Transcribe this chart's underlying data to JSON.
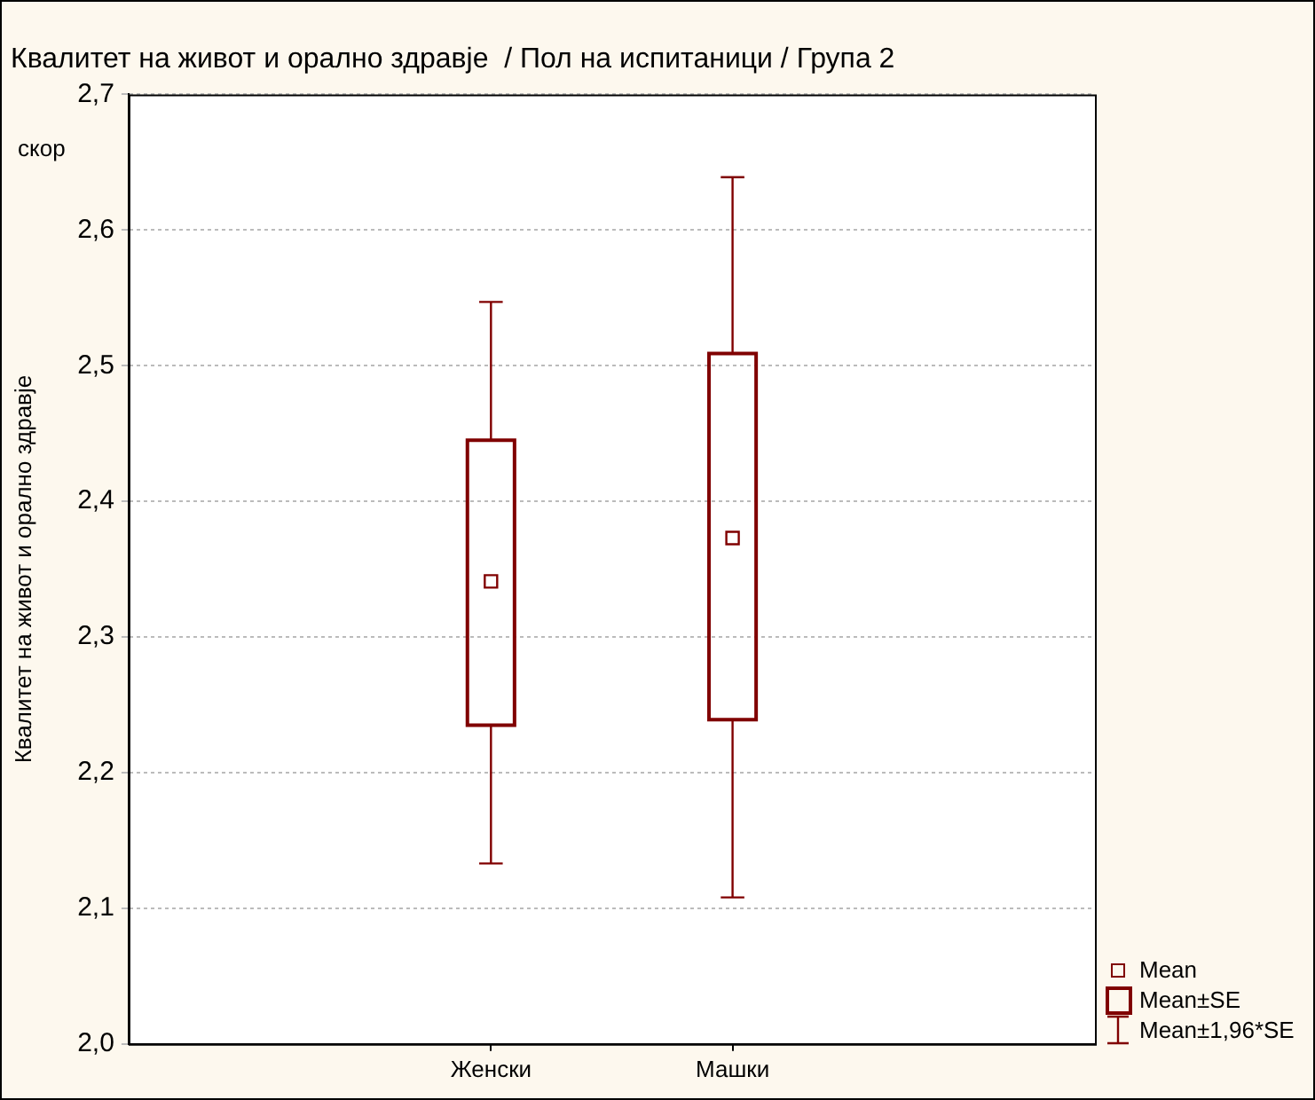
{
  "chart_data": {
    "type": "box",
    "title": "Квалитет на живот и орално здравје  / Пол на испитаници / Група 2",
    "ylabel": "Квалитет на живот и орално здравје",
    "categories": [
      "Женски",
      "Машки"
    ],
    "boxes": [
      {
        "low": 2.133,
        "q1": 2.235,
        "mean": 2.341,
        "q3": 2.445,
        "high": 2.547
      },
      {
        "low": 2.108,
        "q1": 2.239,
        "mean": 2.373,
        "q3": 2.509,
        "high": 2.639
      }
    ],
    "color": "#800000",
    "marker": "square",
    "ylim": [
      2.0,
      2.7
    ],
    "yticks": [
      {
        "value": 2.0,
        "label": "2,0"
      },
      {
        "value": 2.1,
        "label": "2,1"
      },
      {
        "value": 2.2,
        "label": "2,2"
      },
      {
        "value": 2.3,
        "label": "2,3"
      },
      {
        "value": 2.4,
        "label": "2,4"
      },
      {
        "value": 2.5,
        "label": "2,5"
      },
      {
        "value": 2.6,
        "label": "2,6"
      },
      {
        "value": 2.7,
        "label": "2,7"
      }
    ],
    "grid": "y",
    "annotations": [
      "скор",
      "Mean",
      "Mean±SE",
      "Mean±1,96*SE"
    ]
  }
}
